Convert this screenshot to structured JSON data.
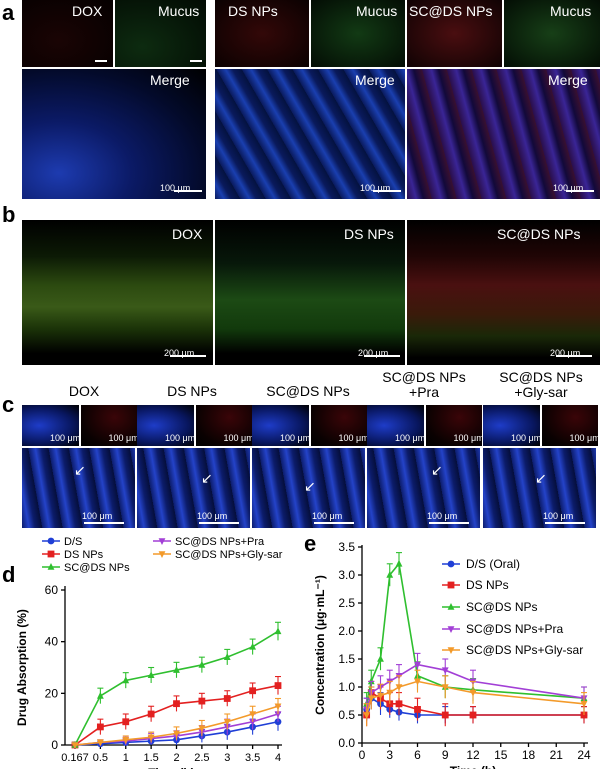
{
  "panel_letters": [
    "a",
    "b",
    "c",
    "d",
    "e"
  ],
  "panel_a": {
    "top_labels": [
      "DOX",
      "Mucus",
      "DS NPs",
      "Mucus",
      "SC@DS NPs",
      "Mucus"
    ],
    "merge_label": "Merge",
    "scale_label": "100 μm"
  },
  "panel_b": {
    "labels": [
      "DOX",
      "DS NPs",
      "SC@DS NPs"
    ],
    "scale_label": "200 μm"
  },
  "panel_c": {
    "headers": [
      "DOX",
      "DS NPs",
      "SC@DS NPs",
      "SC@DS NPs\n+Pra",
      "SC@DS NPs\n+Gly-sar"
    ],
    "scale_label": "100 μm"
  },
  "colors": {
    "D/S": "#1f3fd6",
    "DS NPs": "#e32020",
    "SC@DS NPs": "#2fbf2f",
    "SC@DS NPs+Pra": "#a23fd6",
    "SC@DS NPs+Gly-sar": "#f39a2a"
  },
  "chart_data": [
    {
      "type": "line",
      "xlabel": "Time (h)",
      "ylabel": "Drug Absorption (%)",
      "x": [
        0.167,
        0.5,
        1,
        1.5,
        2,
        2.5,
        3,
        3.5,
        4
      ],
      "x_tick_labels": [
        "0.167",
        "0.5",
        "1",
        "1.5",
        "2",
        "2.5",
        "3",
        "3.5",
        "4"
      ],
      "ylim": [
        0,
        60
      ],
      "y_ticks": [
        0,
        20,
        40,
        60
      ],
      "legend_placement": "top",
      "series": [
        {
          "name": "D/S",
          "values": [
            0,
            0.5,
            1,
            1.5,
            2,
            3.5,
            5,
            7,
            9
          ],
          "errors": [
            0.5,
            0.8,
            1,
            1.5,
            2,
            2.5,
            3,
            3,
            3.5
          ]
        },
        {
          "name": "DS NPs",
          "values": [
            0,
            7,
            9,
            12,
            16,
            17,
            18,
            21,
            23
          ],
          "errors": [
            1,
            3,
            3,
            3,
            3,
            3,
            3,
            3,
            3.5
          ]
        },
        {
          "name": "SC@DS NPs",
          "values": [
            0,
            19,
            25,
            27,
            29,
            31,
            34,
            38,
            44
          ],
          "errors": [
            1,
            3,
            3,
            3,
            3,
            3,
            3,
            3,
            3.5
          ]
        },
        {
          "name": "SC@DS NPs+Pra",
          "values": [
            0,
            1,
            1.5,
            2.5,
            3.5,
            5,
            7,
            9,
            12
          ],
          "errors": [
            0.5,
            1,
            1.5,
            2,
            2,
            2.5,
            3,
            3,
            3
          ]
        },
        {
          "name": "SC@DS NPs+Gly-sar",
          "values": [
            0,
            1,
            2,
            3,
            4.5,
            6.5,
            9,
            12,
            15
          ],
          "errors": [
            0.5,
            1,
            1.5,
            2,
            2.5,
            3,
            3,
            3,
            3
          ]
        }
      ]
    },
    {
      "type": "line",
      "xlabel": "Time (h)",
      "ylabel": "Concentration (μg·mL⁻¹)",
      "x": [
        0.5,
        1,
        2,
        3,
        4,
        6,
        9,
        12,
        24
      ],
      "x_ticks": [
        0,
        3,
        6,
        9,
        12,
        15,
        18,
        21,
        24
      ],
      "xlim": [
        0,
        24
      ],
      "ylim": [
        0,
        3.5
      ],
      "y_ticks": [
        0.0,
        0.5,
        1.0,
        1.5,
        2.0,
        2.5,
        3.0,
        3.5
      ],
      "legend_placement": "top-right",
      "series": [
        {
          "name": "D/S (Oral)",
          "values": [
            0.6,
            0.8,
            0.7,
            0.6,
            0.55,
            0.5,
            0.5,
            0.5,
            0.5
          ],
          "errors": [
            0.2,
            0.2,
            0.2,
            0.15,
            0.15,
            0.15,
            0.15,
            0.15,
            0.15
          ]
        },
        {
          "name": "DS NPs",
          "values": [
            0.5,
            0.9,
            0.8,
            0.7,
            0.7,
            0.6,
            0.5,
            0.5,
            0.5
          ],
          "errors": [
            0.2,
            0.2,
            0.2,
            0.2,
            0.2,
            0.2,
            0.2,
            0.15,
            0.15
          ]
        },
        {
          "name": "SC@DS NPs",
          "values": [
            0.7,
            1.1,
            1.5,
            3.0,
            3.2,
            1.2,
            1.0,
            0.95,
            0.8
          ],
          "errors": [
            0.2,
            0.2,
            0.2,
            0.2,
            0.2,
            0.25,
            0.2,
            0.2,
            0.2
          ]
        },
        {
          "name": "SC@DS NPs+Pra",
          "values": [
            0.6,
            0.9,
            1.0,
            1.1,
            1.2,
            1.4,
            1.3,
            1.1,
            0.8
          ],
          "errors": [
            0.2,
            0.2,
            0.2,
            0.2,
            0.2,
            0.2,
            0.2,
            0.2,
            0.2
          ]
        },
        {
          "name": "SC@DS NPs+Gly-sar",
          "values": [
            0.5,
            0.8,
            0.85,
            0.9,
            1.0,
            1.1,
            1.0,
            0.9,
            0.7
          ],
          "errors": [
            0.2,
            0.2,
            0.2,
            0.2,
            0.2,
            0.2,
            0.2,
            0.2,
            0.2
          ]
        }
      ]
    }
  ]
}
